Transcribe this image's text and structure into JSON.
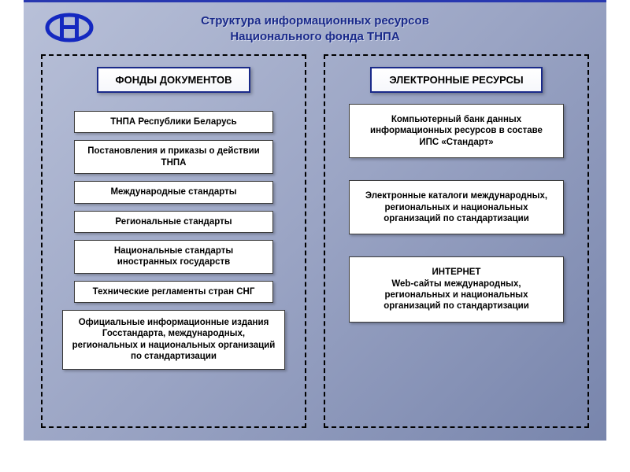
{
  "title_line1": "Структура информационных ресурсов",
  "title_line2": "Национального фонда ТНПА",
  "logo_color": "#1428c0",
  "left": {
    "header": "ФОНДЫ ДОКУМЕНТОВ",
    "items": [
      "ТНПА  Республики Беларусь",
      "Постановления и приказы о действии ТНПА",
      "Международные стандарты",
      "Региональные стандарты",
      "Национальные стандарты иностранных государств",
      "Технические регламенты стран СНГ",
      "Официальные информационные издания Госстандарта, международных, региональных и национальных организаций по стандартизации"
    ]
  },
  "right": {
    "header": "ЭЛЕКТРОННЫЕ РЕСУРСЫ",
    "items": [
      "Компьютерный банк данных информационных ресурсов в составе ИПС «Стандарт»",
      "Электронные каталоги международных, региональных и национальных организаций по стандартизации",
      "ИНТЕРНЕТ\nWeb-сайты международных, региональных и национальных организаций по стандартизации"
    ]
  },
  "styling": {
    "type": "infographic",
    "page_bg_gradient": [
      "#b8c0d8",
      "#9aa4c4",
      "#7885ac"
    ],
    "top_border_color": "#2838b0",
    "title_color": "#1a2a8a",
    "title_fontsize": 15,
    "col_border": "2.5px dashed #000000",
    "header_border_color": "#1a2a8a",
    "header_bg": "#ffffff",
    "header_fontsize": 13,
    "box_bg": "#ffffff",
    "box_border_color": "#3a3a3a",
    "box_fontsize": 11.5,
    "box_shadow": "2px 2px 3px rgba(0,0,0,0.25)",
    "col_gap": 22,
    "left_item_gap": 9,
    "right_item_gap": 28
  }
}
